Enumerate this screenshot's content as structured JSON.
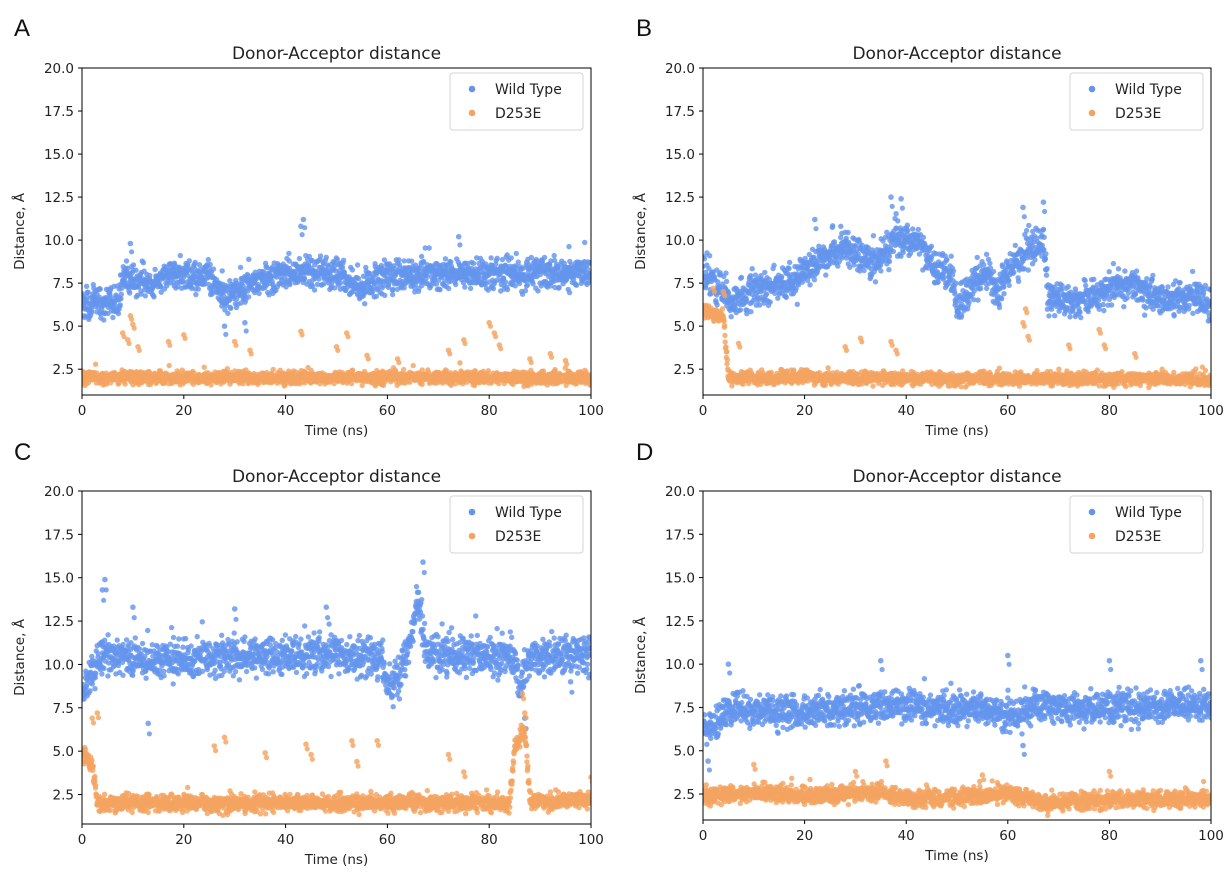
{
  "figure": {
    "panels": [
      "A",
      "B",
      "C",
      "D"
    ]
  },
  "colors": {
    "wild_type": "#6495ED",
    "d253e": "#F4A460",
    "axis": "#000000"
  },
  "chart_data": [
    {
      "panel": "A",
      "type": "scatter",
      "title": "Donor-Acceptor distance",
      "xlabel": "Time (ns)",
      "ylabel": "Distance, Å",
      "xlim": [
        0,
        100
      ],
      "ylim": [
        1.0,
        20.0
      ],
      "xticks": [
        "0",
        "20",
        "40",
        "60",
        "80",
        "100"
      ],
      "yticks": [
        "2.5",
        "5.0",
        "7.5",
        "10.0",
        "12.5",
        "15.0",
        "17.5",
        "20.0"
      ],
      "legend": [
        "Wild Type",
        "D253E"
      ],
      "legend_loc": "upper right",
      "series": [
        {
          "name": "Wild Type",
          "trend": [
            [
              0,
              6.3
            ],
            [
              7,
              6.3
            ],
            [
              8,
              7.8
            ],
            [
              12,
              7.6
            ],
            [
              14,
              7.2
            ],
            [
              17,
              8.0
            ],
            [
              25,
              7.9
            ],
            [
              28,
              6.6
            ],
            [
              33,
              7.4
            ],
            [
              40,
              8.1
            ],
            [
              50,
              8.0
            ],
            [
              55,
              7.2
            ],
            [
              58,
              7.9
            ],
            [
              100,
              8.1
            ]
          ],
          "spread": 0.8,
          "outliers": [
            [
              43.5,
              11.2
            ],
            [
              43,
              10.8
            ],
            [
              74,
              10.2
            ],
            [
              9.5,
              9.8
            ],
            [
              32,
              5.2
            ],
            [
              28,
              5.0
            ]
          ]
        },
        {
          "name": "D253E",
          "trend": [
            [
              0,
              2.0
            ],
            [
              100,
              2.0
            ]
          ],
          "spread": 0.35,
          "outliers": [
            [
              9.5,
              5.6
            ],
            [
              10,
              5.1
            ],
            [
              8,
              4.6
            ],
            [
              9,
              4.2
            ],
            [
              11,
              3.8
            ],
            [
              20,
              4.5
            ],
            [
              17,
              4.1
            ],
            [
              30,
              4.1
            ],
            [
              33,
              3.6
            ],
            [
              43,
              4.7
            ],
            [
              52,
              4.6
            ],
            [
              50,
              3.8
            ],
            [
              56,
              3.3
            ],
            [
              62,
              3.1
            ],
            [
              72,
              3.6
            ],
            [
              75,
              4.2
            ],
            [
              80,
              5.2
            ],
            [
              81,
              4.6
            ],
            [
              82,
              3.9
            ],
            [
              88,
              3.1
            ],
            [
              92,
              3.4
            ],
            [
              95,
              3.0
            ]
          ]
        }
      ]
    },
    {
      "panel": "B",
      "type": "scatter",
      "title": "Donor-Acceptor distance",
      "xlabel": "Time (ns)",
      "ylabel": "Distance, Å",
      "xlim": [
        0,
        100
      ],
      "ylim": [
        1.0,
        20.0
      ],
      "xticks": [
        "0",
        "20",
        "40",
        "60",
        "80",
        "100"
      ],
      "yticks": [
        "2.5",
        "5.0",
        "7.5",
        "10.0",
        "12.5",
        "15.0",
        "17.5",
        "20.0"
      ],
      "legend": [
        "Wild Type",
        "D253E"
      ],
      "legend_loc": "upper right",
      "series": [
        {
          "name": "Wild Type",
          "trend": [
            [
              0,
              8.0
            ],
            [
              4,
              7.0
            ],
            [
              6,
              6.5
            ],
            [
              10,
              7.2
            ],
            [
              18,
              7.5
            ],
            [
              22,
              8.6
            ],
            [
              28,
              9.6
            ],
            [
              34,
              8.6
            ],
            [
              38,
              10.2
            ],
            [
              42,
              9.8
            ],
            [
              46,
              8.4
            ],
            [
              49,
              7.8
            ],
            [
              50,
              5.8
            ],
            [
              53,
              7.5
            ],
            [
              56,
              8.2
            ],
            [
              58,
              6.9
            ],
            [
              60,
              8.2
            ],
            [
              64,
              9.3
            ],
            [
              67,
              10.0
            ],
            [
              68,
              6.5
            ],
            [
              75,
              6.5
            ],
            [
              80,
              7.2
            ],
            [
              85,
              7.4
            ],
            [
              90,
              6.4
            ],
            [
              95,
              6.8
            ],
            [
              100,
              6.3
            ]
          ],
          "spread": 0.9,
          "outliers": [
            [
              37,
              12.5
            ],
            [
              39,
              12.4
            ],
            [
              67,
              12.2
            ],
            [
              63,
              11.9
            ],
            [
              22,
              11.2
            ]
          ]
        },
        {
          "name": "D253E",
          "trend": [
            [
              0,
              5.8
            ],
            [
              4,
              5.6
            ],
            [
              5,
              2.0
            ],
            [
              100,
              1.9
            ]
          ],
          "spread": 0.35,
          "outliers": [
            [
              2,
              7.2
            ],
            [
              4,
              7.0
            ],
            [
              7,
              4.0
            ],
            [
              28,
              3.8
            ],
            [
              31,
              4.3
            ],
            [
              37,
              4.1
            ],
            [
              38,
              3.6
            ],
            [
              63.5,
              6.0
            ],
            [
              63,
              5.2
            ],
            [
              64,
              4.4
            ],
            [
              72,
              3.9
            ],
            [
              78,
              4.8
            ],
            [
              79,
              3.9
            ],
            [
              85,
              3.4
            ]
          ]
        }
      ]
    },
    {
      "panel": "C",
      "type": "scatter",
      "title": "Donor-Acceptor distance",
      "xlabel": "Time (ns)",
      "ylabel": "Distance, Å",
      "xlim": [
        0,
        100
      ],
      "ylim": [
        0.8,
        20.0
      ],
      "xticks": [
        "0",
        "20",
        "40",
        "60",
        "80",
        "100"
      ],
      "yticks": [
        "2.5",
        "5.0",
        "7.5",
        "10.0",
        "12.5",
        "15.0",
        "17.5",
        "20.0"
      ],
      "legend": [
        "Wild Type",
        "D253E"
      ],
      "legend_loc": "upper right",
      "series": [
        {
          "name": "Wild Type",
          "trend": [
            [
              0,
              8.0
            ],
            [
              2,
              9.5
            ],
            [
              4,
              10.6
            ],
            [
              12,
              10.2
            ],
            [
              30,
              10.4
            ],
            [
              50,
              10.6
            ],
            [
              59,
              10.3
            ],
            [
              60,
              8.7
            ],
            [
              62,
              9.0
            ],
            [
              64,
              10.8
            ],
            [
              66,
              13.5
            ],
            [
              67,
              12.0
            ],
            [
              68,
              10.7
            ],
            [
              85,
              10.4
            ],
            [
              86,
              8.6
            ],
            [
              88,
              10.5
            ],
            [
              100,
              10.6
            ]
          ],
          "spread": 1.0,
          "outliers": [
            [
              4.5,
              14.9
            ],
            [
              4,
              14.3
            ],
            [
              67,
              15.9
            ],
            [
              10,
              13.3
            ],
            [
              30,
              13.2
            ],
            [
              48,
              13.3
            ],
            [
              13,
              6.6
            ],
            [
              87,
              6.9
            ],
            [
              96,
              9.0
            ]
          ]
        },
        {
          "name": "D253E",
          "trend": [
            [
              0,
              4.8
            ],
            [
              2,
              4.2
            ],
            [
              3,
              2.0
            ],
            [
              84,
              2.0
            ],
            [
              85,
              5.2
            ],
            [
              87,
              6.2
            ],
            [
              88,
              2.1
            ],
            [
              100,
              2.2
            ]
          ],
          "spread": 0.45,
          "outliers": [
            [
              2,
              6.9
            ],
            [
              3,
              7.2
            ],
            [
              26,
              5.3
            ],
            [
              28,
              5.8
            ],
            [
              36,
              4.9
            ],
            [
              44,
              5.4
            ],
            [
              45,
              4.8
            ],
            [
              53,
              5.6
            ],
            [
              54,
              4.4
            ],
            [
              58,
              5.6
            ],
            [
              72,
              4.8
            ],
            [
              75,
              3.8
            ],
            [
              86.5,
              8.3
            ],
            [
              87,
              7.2
            ],
            [
              100,
              3.5
            ]
          ]
        }
      ]
    },
    {
      "panel": "D",
      "type": "scatter",
      "title": "Donor-Acceptor distance",
      "xlabel": "Time (ns)",
      "ylabel": "Distance, Å",
      "xlim": [
        0,
        100
      ],
      "ylim": [
        1.0,
        20.0
      ],
      "xticks": [
        "0",
        "20",
        "40",
        "60",
        "80",
        "100"
      ],
      "yticks": [
        "2.5",
        "5.0",
        "7.5",
        "10.0",
        "12.5",
        "15.0",
        "17.5",
        "20.0"
      ],
      "legend": [
        "Wild Type",
        "D253E"
      ],
      "legend_loc": "upper right",
      "series": [
        {
          "name": "Wild Type",
          "trend": [
            [
              0,
              6.0
            ],
            [
              2,
              6.5
            ],
            [
              5,
              7.3
            ],
            [
              20,
              7.2
            ],
            [
              30,
              7.5
            ],
            [
              40,
              7.6
            ],
            [
              55,
              7.4
            ],
            [
              62,
              7.0
            ],
            [
              65,
              7.6
            ],
            [
              80,
              7.5
            ],
            [
              100,
              7.6
            ]
          ],
          "spread": 0.85,
          "outliers": [
            [
              5,
              10.0
            ],
            [
              35,
              10.2
            ],
            [
              60,
              10.5
            ],
            [
              80,
              10.2
            ],
            [
              98,
              10.2
            ],
            [
              63,
              5.3
            ],
            [
              1,
              4.4
            ]
          ]
        },
        {
          "name": "D253E",
          "trend": [
            [
              0,
              2.3
            ],
            [
              10,
              2.6
            ],
            [
              20,
              2.4
            ],
            [
              35,
              2.6
            ],
            [
              40,
              2.2
            ],
            [
              60,
              2.5
            ],
            [
              68,
              2.0
            ],
            [
              80,
              2.2
            ],
            [
              100,
              2.2
            ]
          ],
          "spread": 0.45,
          "outliers": [
            [
              10,
              4.2
            ],
            [
              36,
              4.4
            ],
            [
              30,
              3.8
            ],
            [
              55,
              3.6
            ],
            [
              80,
              3.8
            ]
          ]
        }
      ]
    }
  ]
}
